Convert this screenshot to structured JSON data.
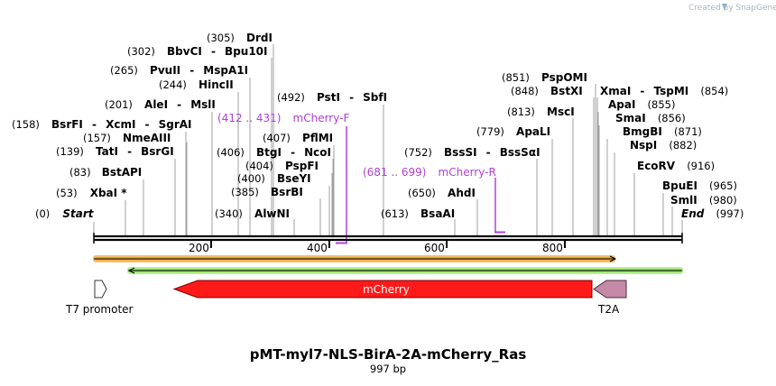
{
  "credit": "Created by SnapGene",
  "map": {
    "title": "pMT-myl7-NLS-BirA-2A-mCherry_Ras",
    "length_label": "997 bp",
    "axis_ticks": [
      "200",
      "400",
      "600",
      "800"
    ]
  },
  "sites": {
    "start": {
      "pos": "(0)",
      "name": "Start"
    },
    "end": {
      "pos": "(997)",
      "name": "End"
    },
    "xbai": {
      "pos": "(53)",
      "name": "XbaI *"
    },
    "bstapi": {
      "pos": "(83)",
      "name": "BstAPI"
    },
    "tati": {
      "pos": "(139)",
      "name": "TatI",
      "name2": "BsrGI"
    },
    "nmeaiii": {
      "pos": "(157)",
      "name": "NmeAIII"
    },
    "bsrfi": {
      "pos": "(158)",
      "name": "BsrFI",
      "name2": "XcmI",
      "name3": "SgrAI"
    },
    "alei": {
      "pos": "(201)",
      "name": "AleI",
      "name2": "MslI"
    },
    "hincii": {
      "pos": "(244)",
      "name": "HincII"
    },
    "pvuii": {
      "pos": "(265)",
      "name": "PvuII",
      "name2": "MspA1I"
    },
    "bbvci": {
      "pos": "(302)",
      "name": "BbvCI",
      "name2": "Bpu10I"
    },
    "drdi": {
      "pos": "(305)",
      "name": "DrdI"
    },
    "alwni": {
      "pos": "(340)",
      "name": "AlwNI"
    },
    "bsrbi": {
      "pos": "(385)",
      "name": "BsrBI"
    },
    "bseyi": {
      "pos": "(400)",
      "name": "BseYI"
    },
    "pspfi": {
      "pos": "(404)",
      "name": "PspFI"
    },
    "btgi": {
      "pos": "(406)",
      "name": "BtgI",
      "name2": "NcoI"
    },
    "pflmi": {
      "pos": "(407)",
      "name": "PflMI"
    },
    "psti": {
      "pos": "(492)",
      "name": "PstI",
      "name2": "SbfI"
    },
    "bsaai": {
      "pos": "(613)",
      "name": "BsaAI"
    },
    "ahdi": {
      "pos": "(650)",
      "name": "AhdI"
    },
    "bsssi": {
      "pos": "(752)",
      "name": "BssSI",
      "name2": "BssSαI"
    },
    "apali": {
      "pos": "(779)",
      "name": "ApaLI"
    },
    "msci": {
      "pos": "(813)",
      "name": "MscI"
    },
    "bstxi": {
      "pos": "(848)",
      "name": "BstXI"
    },
    "pspomi": {
      "pos": "(851)",
      "name": "PspOMI"
    },
    "xmai": {
      "pos": "(854)",
      "name": "XmaI",
      "name2": "TspMI"
    },
    "apai": {
      "pos": "(855)",
      "name": "ApaI"
    },
    "smai": {
      "pos": "(856)",
      "name": "SmaI"
    },
    "bmgbi": {
      "pos": "(871)",
      "name": "BmgBI"
    },
    "nspi": {
      "pos": "(882)",
      "name": "NspI"
    },
    "ecorv": {
      "pos": "(916)",
      "name": "EcoRV"
    },
    "bpuei": {
      "pos": "(965)",
      "name": "BpuEI"
    },
    "smli": {
      "pos": "(980)",
      "name": "SmlI"
    }
  },
  "primers": {
    "fwd": {
      "range": "(412 .. 431)",
      "name": "mCherry-F"
    },
    "rev": {
      "range": "(681 .. 699)",
      "name": "mCherry-R"
    }
  },
  "features": {
    "t7": "T7 promoter",
    "mcherry": "mCherry",
    "t2a": "T2A"
  },
  "colors": {
    "mcherry": "#ff1a1a",
    "t2a": "#c48aa8",
    "primer": "#b040d8",
    "orange_bar": "#f0a53a",
    "green_bar": "#88e060",
    "backbone": "#000000"
  }
}
